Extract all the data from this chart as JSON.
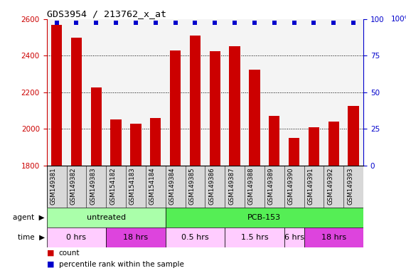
{
  "title": "GDS3954 / 213762_x_at",
  "samples": [
    "GSM149381",
    "GSM149382",
    "GSM149383",
    "GSM154182",
    "GSM154183",
    "GSM154184",
    "GSM149384",
    "GSM149385",
    "GSM149386",
    "GSM149387",
    "GSM149388",
    "GSM149389",
    "GSM149390",
    "GSM149391",
    "GSM149392",
    "GSM149393"
  ],
  "counts": [
    2570,
    2500,
    2225,
    2050,
    2030,
    2060,
    2430,
    2510,
    2425,
    2450,
    2325,
    2070,
    1950,
    2010,
    2040,
    2125
  ],
  "bar_color": "#cc0000",
  "dot_color": "#0000cc",
  "ylim_left": [
    1800,
    2600
  ],
  "ylim_right": [
    0,
    100
  ],
  "yticks_left": [
    1800,
    2000,
    2200,
    2400,
    2600
  ],
  "yticks_right": [
    0,
    25,
    50,
    75,
    100
  ],
  "grid_lines": [
    2000,
    2200,
    2400
  ],
  "agent_row": [
    {
      "label": "untreated",
      "start": 0,
      "end": 6,
      "color": "#aaffaa"
    },
    {
      "label": "PCB-153",
      "start": 6,
      "end": 16,
      "color": "#55ee55"
    }
  ],
  "time_row": [
    {
      "label": "0 hrs",
      "start": 0,
      "end": 3,
      "color": "#ffccff"
    },
    {
      "label": "18 hrs",
      "start": 3,
      "end": 6,
      "color": "#dd44dd"
    },
    {
      "label": "0.5 hrs",
      "start": 6,
      "end": 9,
      "color": "#ffccff"
    },
    {
      "label": "1.5 hrs",
      "start": 9,
      "end": 12,
      "color": "#ffccff"
    },
    {
      "label": "6 hrs",
      "start": 12,
      "end": 13,
      "color": "#ffccff"
    },
    {
      "label": "18 hrs",
      "start": 13,
      "end": 16,
      "color": "#dd44dd"
    }
  ],
  "left_axis_color": "#cc0000",
  "right_axis_color": "#0000cc",
  "plot_bg": "#f4f4f4",
  "xticklabel_bg": "#d8d8d8"
}
